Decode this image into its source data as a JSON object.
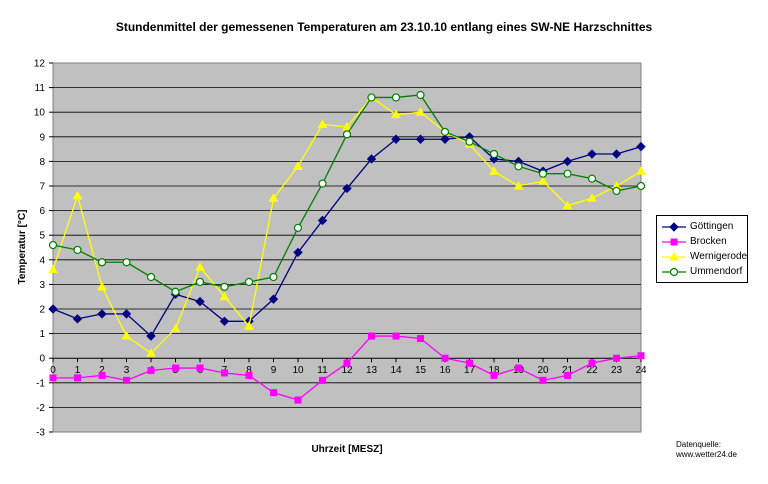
{
  "chart_data": {
    "type": "line",
    "title": "Stundenmittel der gemessenen Temperaturen am 23.10.10 entlang eines SW-NE Harzschnittes",
    "xlabel": "Uhrzeit [MESZ]",
    "ylabel": "Temperatur [°C]",
    "xlim": [
      0,
      24
    ],
    "ylim": [
      -3,
      12
    ],
    "x": [
      0,
      1,
      2,
      3,
      4,
      5,
      6,
      7,
      8,
      9,
      10,
      11,
      12,
      13,
      14,
      15,
      16,
      17,
      18,
      19,
      20,
      21,
      22,
      23,
      24
    ],
    "x_ticks": [
      "0",
      "1",
      "2",
      "3",
      "4",
      "5",
      "6",
      "7",
      "8",
      "9",
      "10",
      "11",
      "12",
      "13",
      "14",
      "15",
      "16",
      "17",
      "18",
      "19",
      "20",
      "21",
      "22",
      "23",
      "24"
    ],
    "y_ticks": [
      "12",
      "11",
      "10",
      "9",
      "8",
      "7",
      "6",
      "5",
      "4",
      "3",
      "2",
      "1",
      "0",
      "-1",
      "-2",
      "-3"
    ],
    "grid": true,
    "plot_background": "#c0c0c0",
    "legend_position": "right",
    "series": [
      {
        "name": "Göttingen",
        "color": "#000080",
        "marker": "diamond",
        "values": [
          2.0,
          1.6,
          1.8,
          1.8,
          0.9,
          2.6,
          2.3,
          1.5,
          1.5,
          2.4,
          4.3,
          5.6,
          6.9,
          8.1,
          8.9,
          8.9,
          8.9,
          9.0,
          8.1,
          8.0,
          7.6,
          8.0,
          8.3,
          8.3,
          8.6
        ]
      },
      {
        "name": "Brocken",
        "color": "#ff00ff",
        "marker": "square",
        "values": [
          -0.8,
          -0.8,
          -0.7,
          -0.9,
          -0.5,
          -0.4,
          -0.4,
          -0.6,
          -0.7,
          -1.4,
          -1.7,
          -0.9,
          -0.2,
          0.9,
          0.9,
          0.8,
          0.0,
          -0.2,
          -0.7,
          -0.4,
          -0.9,
          -0.7,
          -0.2,
          0.0,
          0.1
        ]
      },
      {
        "name": "Wernigerode",
        "color": "#ffff00",
        "marker": "triangle",
        "values": [
          3.6,
          6.6,
          2.9,
          0.9,
          0.2,
          1.2,
          3.7,
          2.5,
          1.3,
          6.5,
          7.8,
          9.5,
          9.4,
          10.6,
          9.9,
          10.0,
          9.2,
          8.7,
          7.6,
          7.0,
          7.2,
          6.2,
          6.5,
          7.0,
          7.6
        ]
      },
      {
        "name": "Ummendorf",
        "color": "#008000",
        "marker": "circle",
        "values": [
          4.6,
          4.4,
          3.9,
          3.9,
          3.3,
          2.7,
          3.1,
          2.9,
          3.1,
          3.3,
          5.3,
          7.1,
          9.1,
          10.6,
          10.6,
          10.7,
          9.2,
          8.8,
          8.3,
          7.8,
          7.5,
          7.5,
          7.3,
          6.8,
          7.0
        ]
      }
    ],
    "source_note": [
      "Datenquelle:",
      "www.wetter24.de"
    ]
  }
}
